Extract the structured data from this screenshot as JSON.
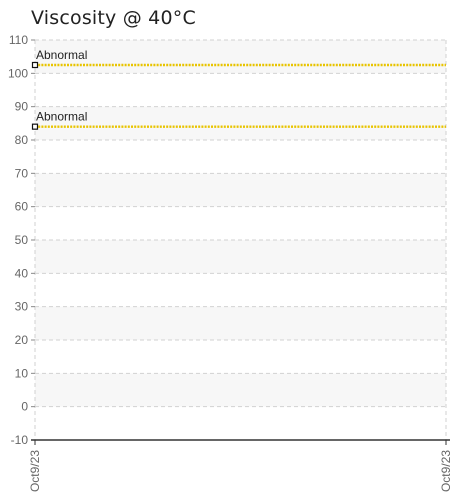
{
  "chart_data": {
    "type": "line",
    "title": "Viscosity @ 40°C",
    "xlabel": "",
    "ylabel": "",
    "ylim": [
      -10,
      110
    ],
    "yticks": [
      -10,
      0,
      10,
      20,
      30,
      40,
      50,
      60,
      70,
      80,
      90,
      100,
      110
    ],
    "ytick_labels": [
      "-10",
      "0",
      "10",
      "20",
      "30",
      "40",
      "50",
      "60",
      "70",
      "80",
      "90",
      "100",
      "110"
    ],
    "x": [
      "Oct9/23"
    ],
    "xtick_labels": [
      "Oct9/23",
      "Oct9/23"
    ],
    "grid": true,
    "limits": [
      {
        "label": "Abnormal",
        "value": 102.5,
        "color": "#e8c400"
      },
      {
        "label": "Abnormal",
        "value": 84,
        "color": "#e8c400"
      }
    ]
  }
}
